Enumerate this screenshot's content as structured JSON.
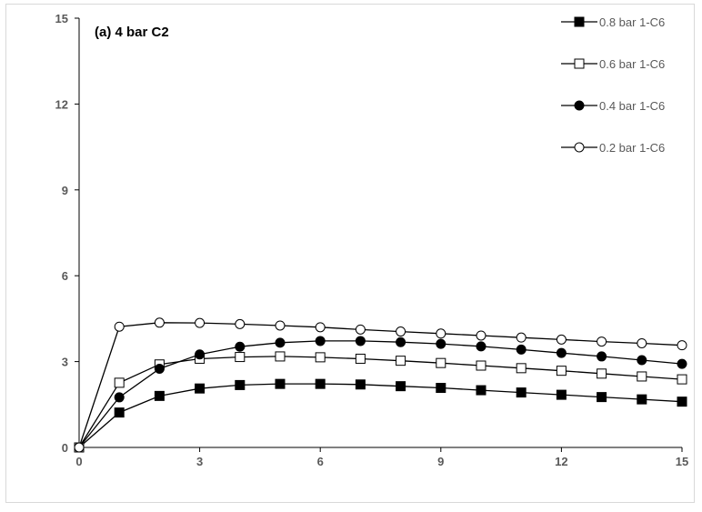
{
  "chart_data": {
    "type": "line",
    "title": "(a) 4 bar C2",
    "xlabel": "",
    "ylabel": "",
    "xlim": [
      0,
      15
    ],
    "ylim": [
      0,
      15
    ],
    "xticks": [
      0,
      3,
      6,
      9,
      12,
      15
    ],
    "yticks": [
      0,
      3,
      6,
      9,
      12,
      15
    ],
    "grid": false,
    "legend_position": "top-right",
    "x": [
      0,
      1,
      2,
      3,
      4,
      5,
      6,
      7,
      8,
      9,
      10,
      11,
      12,
      13,
      14,
      15
    ],
    "series": [
      {
        "name": "0.8 bar 1-C6",
        "marker": "filled-square",
        "values": [
          0,
          1.22,
          1.8,
          2.06,
          2.18,
          2.22,
          2.22,
          2.2,
          2.14,
          2.08,
          2.0,
          1.92,
          1.84,
          1.76,
          1.68,
          1.6
        ]
      },
      {
        "name": "0.6 bar 1-C6",
        "marker": "open-square",
        "values": [
          0,
          2.26,
          2.9,
          3.1,
          3.16,
          3.18,
          3.15,
          3.1,
          3.03,
          2.95,
          2.86,
          2.77,
          2.68,
          2.58,
          2.48,
          2.38
        ]
      },
      {
        "name": "0.4 bar 1-C6",
        "marker": "filled-circle",
        "values": [
          0,
          1.75,
          2.75,
          3.25,
          3.52,
          3.66,
          3.72,
          3.72,
          3.68,
          3.62,
          3.53,
          3.42,
          3.3,
          3.18,
          3.05,
          2.92
        ]
      },
      {
        "name": "0.2 bar 1-C6",
        "marker": "open-circle",
        "values": [
          0,
          4.22,
          4.36,
          4.35,
          4.31,
          4.26,
          4.2,
          4.12,
          4.05,
          3.98,
          3.91,
          3.84,
          3.77,
          3.7,
          3.64,
          3.57
        ]
      }
    ]
  }
}
